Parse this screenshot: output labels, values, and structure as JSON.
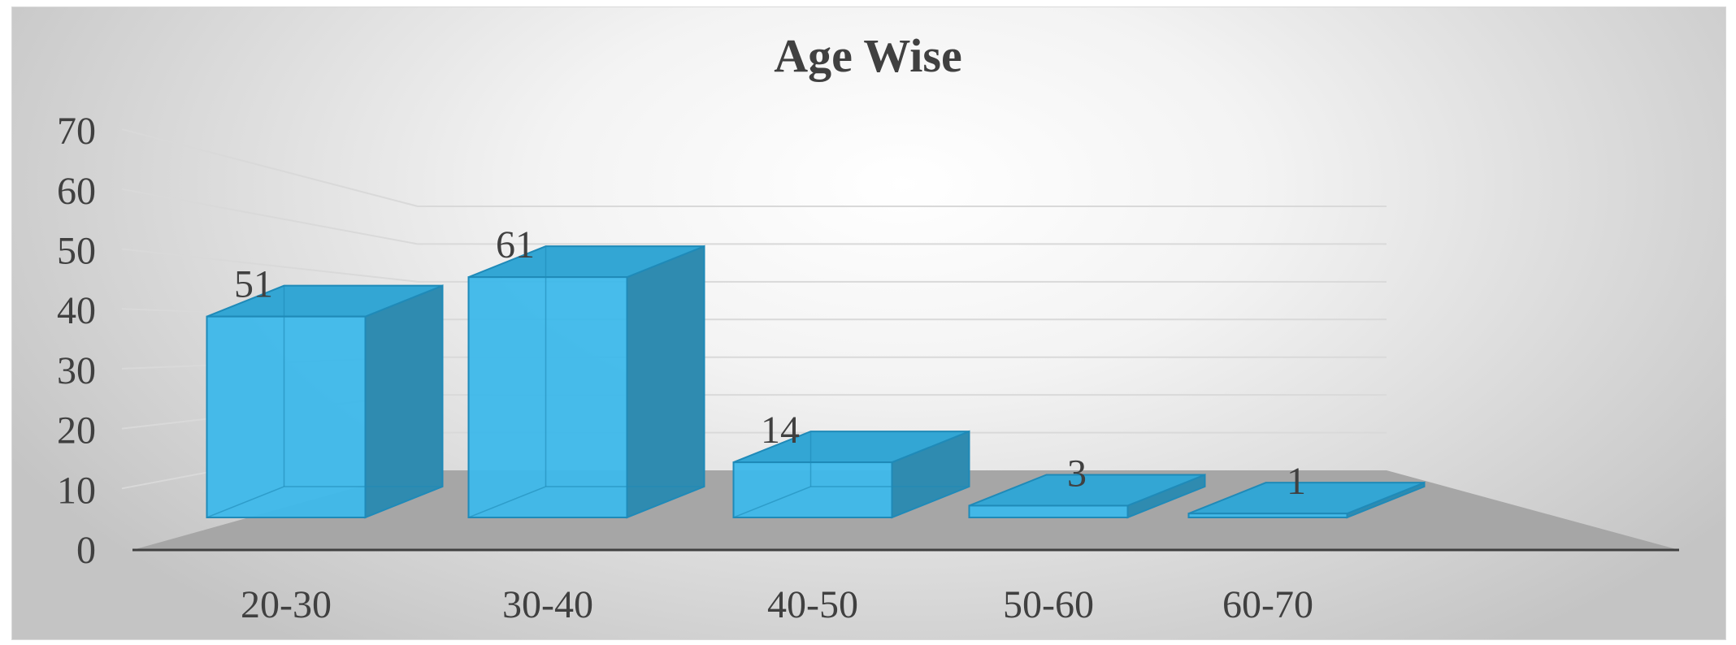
{
  "chart_data": {
    "type": "bar",
    "title": "Age Wise",
    "xlabel": "",
    "ylabel": "",
    "categories": [
      "20-30",
      "30-40",
      "40-50",
      "50-60",
      "60-70"
    ],
    "values": [
      51,
      61,
      14,
      3,
      1
    ],
    "ylim": [
      0,
      70
    ],
    "yticks": [
      "0",
      "10",
      "20",
      "30",
      "40",
      "50",
      "60",
      "70"
    ],
    "grid": true,
    "legend": "none",
    "style": "3d-column",
    "colors": {
      "front": "#3db8ea",
      "front_stroke": "#1f8ab8",
      "side": "#2f8bb0",
      "top": "#33a6d4",
      "floor": "#a6a6a6",
      "gridline": "#d9d9d9"
    }
  }
}
